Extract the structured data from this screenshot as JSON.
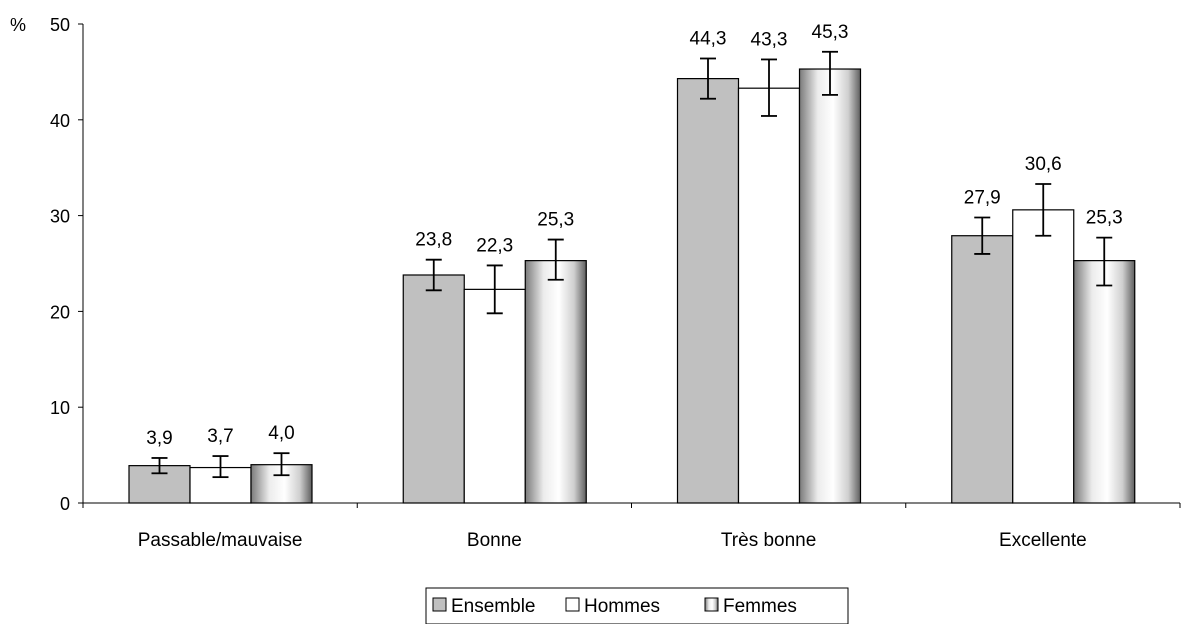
{
  "chart_data": {
    "type": "bar",
    "ylabel": "%",
    "ylim": [
      0,
      50
    ],
    "yticks": [
      0,
      10,
      20,
      30,
      40,
      50
    ],
    "categories": [
      "Passable/mauvaise",
      "Bonne",
      "Très bonne",
      "Excellente"
    ],
    "series": [
      {
        "name": "Ensemble",
        "values": [
          3.9,
          23.8,
          44.3,
          27.9
        ],
        "labels": [
          "3,9",
          "23,8",
          "44,3",
          "27,9"
        ],
        "error": [
          [
            3.1,
            4.7
          ],
          [
            22.2,
            25.4
          ],
          [
            42.2,
            46.4
          ],
          [
            26.0,
            29.8
          ]
        ],
        "fill": "#c0c0c0"
      },
      {
        "name": "Hommes",
        "values": [
          3.7,
          22.3,
          43.3,
          30.6
        ],
        "labels": [
          "3,7",
          "22,3",
          "43,3",
          "30,6"
        ],
        "error": [
          [
            2.7,
            4.9
          ],
          [
            19.8,
            24.8
          ],
          [
            40.4,
            46.3
          ],
          [
            27.9,
            33.3
          ]
        ],
        "fill": "#ffffff"
      },
      {
        "name": "Femmes",
        "values": [
          4.0,
          25.3,
          45.3,
          25.3
        ],
        "labels": [
          "4,0",
          "25,3",
          "45,3",
          "25,3"
        ],
        "error": [
          [
            2.9,
            5.2
          ],
          [
            23.3,
            27.5
          ],
          [
            42.6,
            47.1
          ],
          [
            22.7,
            27.7
          ]
        ],
        "fill": "gradient"
      }
    ],
    "legend_position": "bottom",
    "grid": false
  }
}
